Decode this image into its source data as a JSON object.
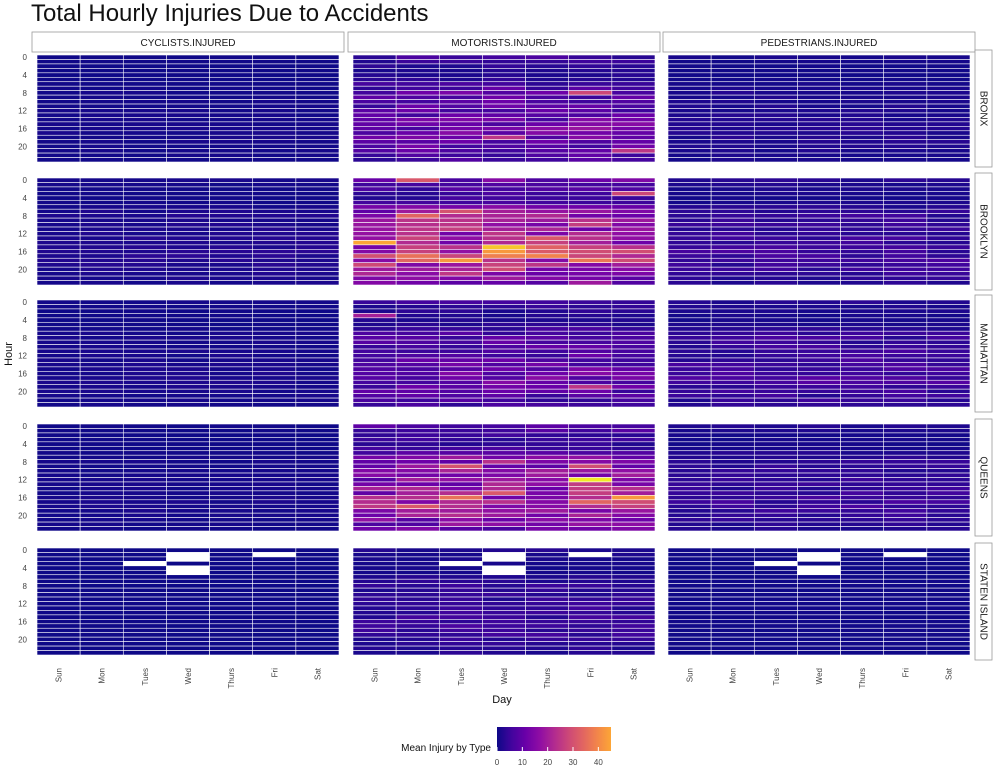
{
  "chart_data": {
    "type": "heatmap",
    "title": "Total Hourly Injuries Due to Accidents",
    "xlabel": "Day",
    "ylabel": "Hour",
    "x_categories": [
      "Sun",
      "Mon",
      "Tues",
      "Wed",
      "Thurs",
      "Fri",
      "Sat"
    ],
    "y_tick_labels": [
      "0",
      "4",
      "8",
      "12",
      "16",
      "20"
    ],
    "y_hours": [
      0,
      23
    ],
    "facet_columns": [
      "CYCLISTS.INJURED",
      "MOTORISTS.INJURED",
      "PEDESTRIANS.INJURED"
    ],
    "facet_rows": [
      "BRONX",
      "BROOKLYN",
      "MANHATTAN",
      "QUEENS",
      "STATEN ISLAND"
    ],
    "legend": {
      "title": "Mean Injury by Type",
      "ticks": [
        0,
        10,
        20,
        30,
        40
      ],
      "range": [
        0,
        45
      ],
      "colormap": "plasma"
    },
    "base_levels": [
      [
        0.6,
        8,
        1.5
      ],
      [
        1.5,
        17,
        3.5
      ],
      [
        0.9,
        7,
        4
      ],
      [
        0.7,
        14,
        3
      ],
      [
        0.1,
        3,
        0.3
      ]
    ],
    "hour_profile": [
      0.55,
      0.4,
      0.3,
      0.25,
      0.22,
      0.3,
      0.55,
      0.8,
      1.0,
      0.9,
      0.9,
      0.95,
      1.0,
      1.05,
      1.1,
      1.2,
      1.3,
      1.35,
      1.3,
      1.15,
      1.0,
      0.9,
      0.8,
      0.65
    ],
    "day_profile": [
      0.9,
      1.0,
      1.05,
      1.05,
      1.05,
      1.1,
      1.0
    ],
    "hotspots": [
      {
        "row": 1,
        "col": 1,
        "day": 0,
        "hour": 14,
        "value": 40
      },
      {
        "row": 1,
        "col": 1,
        "day": 3,
        "hour": 15,
        "value": 42
      },
      {
        "row": 1,
        "col": 1,
        "day": 3,
        "hour": 16,
        "value": 38
      },
      {
        "row": 1,
        "col": 1,
        "day": 2,
        "hour": 18,
        "value": 38
      },
      {
        "row": 1,
        "col": 1,
        "day": 1,
        "hour": 17,
        "value": 32
      },
      {
        "row": 1,
        "col": 1,
        "day": 1,
        "hour": 18,
        "value": 30
      },
      {
        "row": 1,
        "col": 1,
        "day": 1,
        "hour": 8,
        "value": 30
      },
      {
        "row": 1,
        "col": 1,
        "day": 1,
        "hour": 0,
        "value": 28
      },
      {
        "row": 1,
        "col": 1,
        "day": 2,
        "hour": 7,
        "value": 27
      },
      {
        "row": 1,
        "col": 1,
        "day": 4,
        "hour": 13,
        "value": 28
      },
      {
        "row": 1,
        "col": 1,
        "day": 6,
        "hour": 3,
        "value": 25
      },
      {
        "row": 1,
        "col": 1,
        "day": 5,
        "hour": 16,
        "value": 26
      },
      {
        "row": 3,
        "col": 1,
        "day": 5,
        "hour": 12,
        "value": 44
      },
      {
        "row": 3,
        "col": 1,
        "day": 6,
        "hour": 16,
        "value": 38
      },
      {
        "row": 3,
        "col": 1,
        "day": 2,
        "hour": 16,
        "value": 32
      },
      {
        "row": 3,
        "col": 1,
        "day": 1,
        "hour": 18,
        "value": 28
      },
      {
        "row": 3,
        "col": 1,
        "day": 2,
        "hour": 9,
        "value": 27
      },
      {
        "row": 3,
        "col": 1,
        "day": 5,
        "hour": 9,
        "value": 26
      },
      {
        "row": 3,
        "col": 1,
        "day": 3,
        "hour": 15,
        "value": 28
      },
      {
        "row": 0,
        "col": 1,
        "day": 5,
        "hour": 8,
        "value": 25
      },
      {
        "row": 0,
        "col": 1,
        "day": 6,
        "hour": 21,
        "value": 22
      },
      {
        "row": 0,
        "col": 1,
        "day": 3,
        "hour": 18,
        "value": 22
      },
      {
        "row": 2,
        "col": 1,
        "day": 5,
        "hour": 19,
        "value": 22
      },
      {
        "row": 2,
        "col": 1,
        "day": 0,
        "hour": 3,
        "value": 18
      }
    ],
    "missing_cells": [
      {
        "row": 4,
        "day": 2,
        "hour": 3
      },
      {
        "row": 4,
        "day": 3,
        "hour": 1
      },
      {
        "row": 4,
        "day": 3,
        "hour": 2
      },
      {
        "row": 4,
        "day": 3,
        "hour": 4
      },
      {
        "row": 4,
        "day": 3,
        "hour": 5
      },
      {
        "row": 4,
        "day": 5,
        "hour": 1
      }
    ]
  }
}
